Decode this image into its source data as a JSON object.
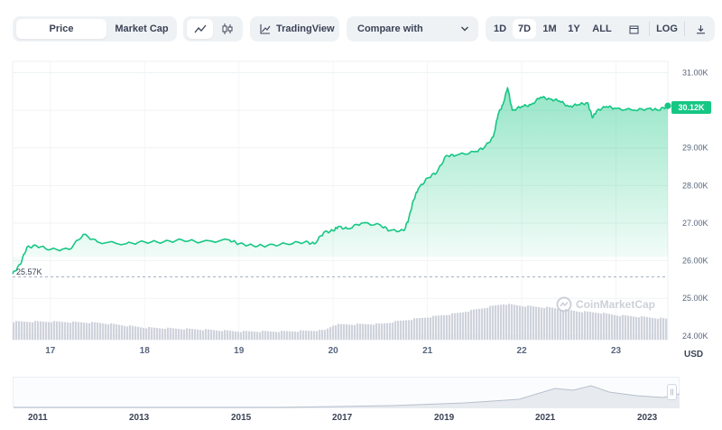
{
  "toolbar": {
    "price_tab": "Price",
    "market_cap_tab": "Market Cap",
    "line_icon": "line-chart-icon",
    "candle_icon": "candlestick-icon",
    "tradingview_label": "TradingView",
    "compare_label": "Compare with",
    "ranges": [
      "1D",
      "7D",
      "1M",
      "1Y",
      "ALL"
    ],
    "active_range": "7D",
    "calendar_icon": "calendar-icon",
    "log_label": "LOG",
    "download_icon": "download-icon"
  },
  "chart": {
    "current_price_label": "30.12K",
    "low_label": "25.57K",
    "currency_label": "USD",
    "watermark": "CoinMarketCap",
    "accent_color": "#16c784",
    "volume_color": "#cfd3dc"
  },
  "navigator": {
    "years": [
      "2011",
      "2013",
      "2015",
      "2017",
      "2019",
      "2021",
      "2023"
    ]
  },
  "chart_data": {
    "type": "area",
    "y_tick_labels": [
      "31.00K",
      "30.00K",
      "29.00K",
      "28.00K",
      "27.00K",
      "26.00K",
      "25.00K",
      "24.00K"
    ],
    "ylim": [
      23.9,
      31.3
    ],
    "x_tick_labels": [
      "17",
      "18",
      "19",
      "20",
      "21",
      "22",
      "23"
    ],
    "xlim": [
      16.6,
      23.55
    ],
    "grid": true,
    "series": [
      {
        "kind": "price",
        "x": [
          16.6,
          16.68,
          16.75,
          16.85,
          17.0,
          17.2,
          17.35,
          17.5,
          17.8,
          18.0,
          18.2,
          18.4,
          18.6,
          18.9,
          19.0,
          19.15,
          19.3,
          19.5,
          19.7,
          19.8,
          19.9,
          20.0,
          20.05,
          20.15,
          20.3,
          20.5,
          20.6,
          20.75,
          20.8,
          20.85,
          20.9,
          21.0,
          21.1,
          21.2,
          21.3,
          21.5,
          21.6,
          21.7,
          21.75,
          21.8,
          21.85,
          21.9,
          22.0,
          22.1,
          22.2,
          22.3,
          22.4,
          22.5,
          22.6,
          22.7,
          22.75,
          22.8,
          22.9,
          23.0,
          23.2,
          23.35,
          23.45,
          23.55
        ],
        "y": [
          25.65,
          25.9,
          26.35,
          26.4,
          26.3,
          26.3,
          26.7,
          26.5,
          26.45,
          26.5,
          26.5,
          26.55,
          26.5,
          26.55,
          26.45,
          26.4,
          26.4,
          26.45,
          26.5,
          26.45,
          26.75,
          26.8,
          26.9,
          26.85,
          27.0,
          26.95,
          26.8,
          26.8,
          27.1,
          27.6,
          27.9,
          28.2,
          28.35,
          28.8,
          28.8,
          28.9,
          29.0,
          29.3,
          29.9,
          30.15,
          30.6,
          30.0,
          30.1,
          30.15,
          30.35,
          30.3,
          30.25,
          30.1,
          30.15,
          30.2,
          29.8,
          30.0,
          30.1,
          30.05,
          30.0,
          30.05,
          30.0,
          30.12
        ]
      },
      {
        "kind": "volume",
        "x": [
          16.6,
          17.0,
          17.5,
          18.0,
          18.5,
          19.0,
          19.5,
          19.9,
          20.0,
          20.5,
          20.7,
          21.0,
          21.3,
          21.6,
          21.8,
          22.0,
          22.3,
          22.6,
          22.8,
          23.0,
          23.3,
          23.55
        ],
        "y": [
          24.38,
          24.38,
          24.35,
          24.22,
          24.18,
          24.12,
          24.12,
          24.15,
          24.3,
          24.32,
          24.4,
          24.5,
          24.6,
          24.75,
          24.85,
          24.8,
          24.75,
          24.65,
          24.62,
          24.55,
          24.5,
          24.45
        ]
      }
    ]
  }
}
